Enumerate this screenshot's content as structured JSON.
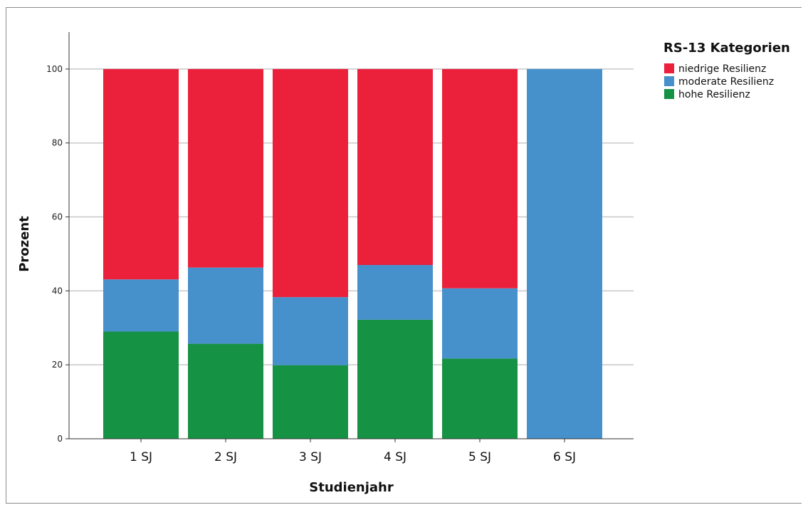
{
  "chart_data": {
    "type": "bar",
    "stacked": true,
    "categories": [
      "1 SJ",
      "2 SJ",
      "3 SJ",
      "4 SJ",
      "5 SJ",
      "6 SJ"
    ],
    "series": [
      {
        "name": "hohe Resilienz",
        "color": "#169244",
        "values": [
          29,
          25.7,
          19.9,
          32.2,
          21.7,
          0
        ]
      },
      {
        "name": "moderate Resilienz",
        "color": "#4690cc",
        "values": [
          14.1,
          20.6,
          18.4,
          14.8,
          19,
          100
        ]
      },
      {
        "name": "niedrige Resilienz",
        "color": "#eb213c",
        "values": [
          56.9,
          53.7,
          61.7,
          53,
          59.3,
          0
        ]
      }
    ],
    "legend": {
      "title": "RS-13 Kategorien",
      "placement": "top-right",
      "order": [
        "niedrige Resilienz",
        "moderate Resilienz",
        "hohe Resilienz"
      ]
    },
    "xlabel": "Studienjahr",
    "ylabel": "Prozent",
    "ylim": [
      0,
      110
    ],
    "yticks": [
      0,
      20,
      40,
      60,
      80,
      100
    ],
    "grid": true
  }
}
